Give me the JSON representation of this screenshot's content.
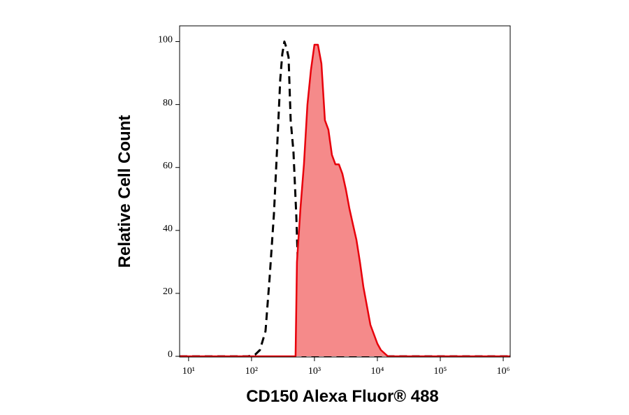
{
  "chart_data": {
    "type": "histogram-overlay",
    "x_label": "CD150 Alexa Fluor® 488",
    "y_label": "Relative Cell Count",
    "xscale": "log",
    "xlim": [
      7.2,
      1290000
    ],
    "ylim": [
      0,
      105
    ],
    "xticks": [
      {
        "value": 10,
        "label": "10¹"
      },
      {
        "value": 100,
        "label": "10²"
      },
      {
        "value": 1000,
        "label": "10³"
      },
      {
        "value": 10000,
        "label": "10⁴"
      },
      {
        "value": 100000,
        "label": "10⁵"
      },
      {
        "value": 1000000,
        "label": "10⁶"
      }
    ],
    "yticks": [
      0,
      20,
      40,
      60,
      80,
      100
    ],
    "series": [
      {
        "color": "#000000",
        "dashed": true,
        "fill": null,
        "x": [
          7.2,
          88,
          114,
          136,
          167,
          194,
          227,
          258,
          286,
          308,
          333,
          359,
          388,
          419,
          464,
          514,
          555,
          600,
          647,
          1290000
        ],
        "values": [
          0,
          0,
          0.5,
          2,
          8,
          25,
          45,
          68,
          88,
          96,
          100,
          98,
          95,
          75,
          65,
          45,
          25,
          5,
          0,
          0
        ]
      },
      {
        "color": "#e8000b",
        "dashed": false,
        "fill": "#f58a8a",
        "x": [
          7.2,
          501,
          527,
          600,
          681,
          774,
          880,
          1000,
          1136,
          1292,
          1468,
          1668,
          1896,
          2154,
          2448,
          2783,
          3162,
          3594,
          4084,
          4642,
          5275,
          5995,
          6813,
          7743,
          8799,
          10000,
          11365,
          12915,
          14678,
          1290000
        ],
        "values": [
          0,
          0,
          30,
          47,
          61,
          80,
          91,
          99,
          99,
          93,
          75,
          72,
          64,
          61,
          61,
          58,
          53,
          47,
          42,
          37,
          30,
          22,
          16,
          10,
          7,
          4,
          2,
          1,
          0,
          0
        ]
      }
    ]
  }
}
